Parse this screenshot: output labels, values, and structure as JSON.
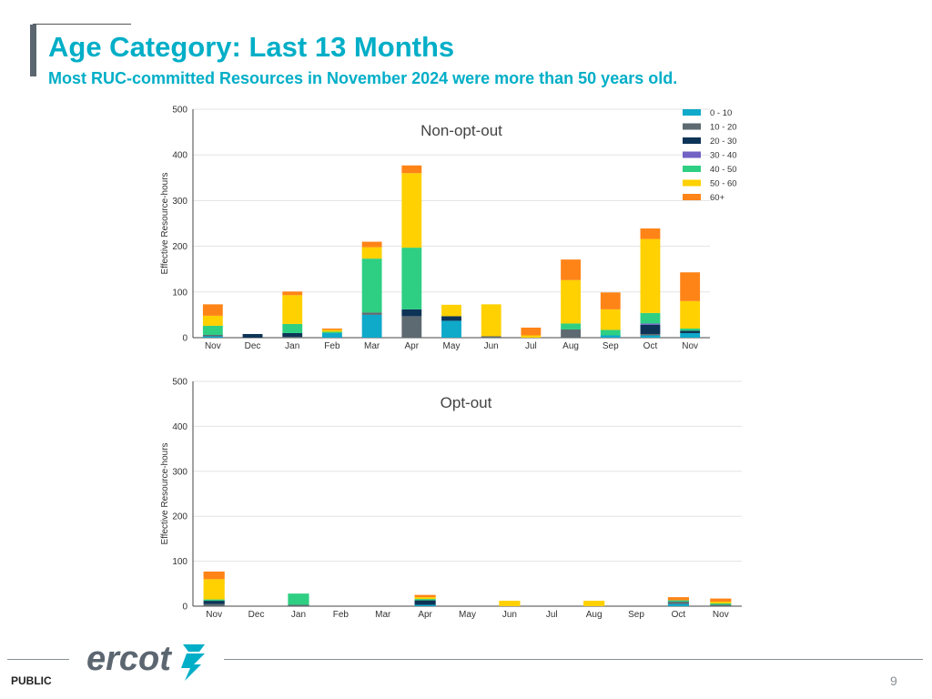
{
  "header": {
    "title": "Age Category: Last 13 Months",
    "subtitle": "Most RUC-committed Resources in November 2024 were more than 50 years old."
  },
  "footer": {
    "classification": "PUBLIC",
    "page_number": "9",
    "logo_text": "ercot"
  },
  "legend": [
    {
      "label": "0 - 10",
      "color": "#0fa9c9"
    },
    {
      "label": "10 - 20",
      "color": "#5e6a72"
    },
    {
      "label": "20 - 30",
      "color": "#0d3457"
    },
    {
      "label": "30 - 40",
      "color": "#7162c4"
    },
    {
      "label": "40 - 50",
      "color": "#2ecf83"
    },
    {
      "label": "50 - 60",
      "color": "#ffd100"
    },
    {
      "label": "60+",
      "color": "#ff8417"
    }
  ],
  "chart_data": [
    {
      "type": "bar",
      "stacked": true,
      "title": "Non-opt-out",
      "ylabel": "Effective Resource-hours",
      "xlabel": "",
      "ylim": [
        0,
        500
      ],
      "yticks": [
        0,
        100,
        200,
        300,
        400,
        500
      ],
      "grid": true,
      "legend_position": "top-right",
      "categories": [
        "Nov",
        "Dec",
        "Jan",
        "Feb",
        "Mar",
        "Apr",
        "May",
        "Jun",
        "Jul",
        "Aug",
        "Sep",
        "Oct",
        "Nov"
      ],
      "series": [
        {
          "name": "0 - 10",
          "values": [
            3,
            0,
            0,
            10,
            50,
            0,
            37,
            0,
            0,
            0,
            5,
            5,
            10
          ]
        },
        {
          "name": "10 - 20",
          "values": [
            3,
            0,
            2,
            0,
            5,
            47,
            0,
            3,
            0,
            18,
            0,
            3,
            0
          ]
        },
        {
          "name": "20 - 30",
          "values": [
            0,
            8,
            8,
            0,
            0,
            15,
            10,
            0,
            0,
            0,
            0,
            20,
            5
          ]
        },
        {
          "name": "30 - 40",
          "values": [
            0,
            0,
            0,
            0,
            0,
            0,
            0,
            0,
            0,
            0,
            0,
            3,
            0
          ]
        },
        {
          "name": "40 - 50",
          "values": [
            20,
            0,
            20,
            3,
            118,
            135,
            0,
            0,
            0,
            13,
            12,
            23,
            5
          ]
        },
        {
          "name": "50 - 60",
          "values": [
            22,
            0,
            63,
            4,
            25,
            163,
            25,
            70,
            5,
            95,
            45,
            162,
            60
          ]
        },
        {
          "name": "60+",
          "values": [
            25,
            0,
            8,
            3,
            12,
            17,
            0,
            0,
            17,
            45,
            37,
            23,
            63
          ]
        }
      ]
    },
    {
      "type": "bar",
      "stacked": true,
      "title": "Opt-out",
      "ylabel": "Effective Resource-hours",
      "xlabel": "",
      "ylim": [
        0,
        500
      ],
      "yticks": [
        0,
        100,
        200,
        300,
        400,
        500
      ],
      "grid": true,
      "categories": [
        "Nov",
        "Dec",
        "Jan",
        "Feb",
        "Mar",
        "Apr",
        "May",
        "Jun",
        "Jul",
        "Aug",
        "Sep",
        "Oct",
        "Nov"
      ],
      "series": [
        {
          "name": "0 - 10",
          "values": [
            0,
            0,
            0,
            0,
            0,
            3,
            0,
            0,
            0,
            0,
            0,
            5,
            0
          ]
        },
        {
          "name": "10 - 20",
          "values": [
            5,
            0,
            3,
            0,
            0,
            0,
            0,
            0,
            0,
            0,
            0,
            5,
            3
          ]
        },
        {
          "name": "20 - 30",
          "values": [
            7,
            0,
            0,
            0,
            0,
            10,
            0,
            0,
            0,
            0,
            0,
            0,
            0
          ]
        },
        {
          "name": "30 - 40",
          "values": [
            0,
            0,
            0,
            0,
            0,
            0,
            0,
            0,
            0,
            0,
            0,
            0,
            0
          ]
        },
        {
          "name": "40 - 50",
          "values": [
            3,
            0,
            25,
            0,
            0,
            3,
            0,
            0,
            0,
            0,
            0,
            3,
            3
          ]
        },
        {
          "name": "50 - 60",
          "values": [
            45,
            0,
            0,
            0,
            0,
            4,
            0,
            12,
            0,
            12,
            0,
            0,
            4
          ]
        },
        {
          "name": "60+",
          "values": [
            17,
            0,
            0,
            0,
            0,
            5,
            0,
            0,
            0,
            0,
            0,
            7,
            7
          ]
        }
      ]
    }
  ]
}
